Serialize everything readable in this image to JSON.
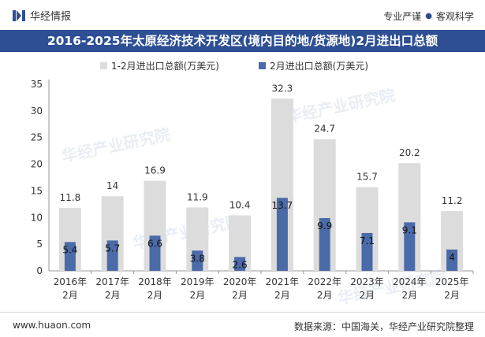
{
  "header": {
    "brand": "华经情报",
    "tagline_left": "专业严谨",
    "tagline_right": "客观科学"
  },
  "title": "2016-2025年太原经济技术开发区(境内目的地/货源地)2月进出口总额",
  "footer": {
    "website": "www.huaon.com",
    "source": "数据来源：中国海关，华经产业研究院整理"
  },
  "watermark": "华经产业研究院",
  "colors": {
    "series1": "#dcdcdc",
    "series2": "#4a6aa8",
    "title_bg": "#2e4f94"
  },
  "chart_data": {
    "type": "bar",
    "categories": [
      "2016年2月",
      "2017年2月",
      "2018年2月",
      "2019年2月",
      "2020年2月",
      "2021年2月",
      "2022年2月",
      "2023年2月",
      "2024年2月",
      "2025年2月"
    ],
    "series": [
      {
        "name": "1-2月进出口总额(万美元)",
        "values": [
          11.8,
          14,
          16.9,
          11.9,
          10.4,
          32.3,
          24.7,
          15.7,
          20.2,
          11.2
        ]
      },
      {
        "name": "2月进出口总额(万美元)",
        "values": [
          5.4,
          5.7,
          6.6,
          3.8,
          2.6,
          13.7,
          9.9,
          7.1,
          9.1,
          4
        ]
      }
    ],
    "ylim": [
      0,
      35
    ],
    "yticks": [
      0,
      5,
      10,
      15,
      20,
      25,
      30,
      35
    ],
    "legend": "top-center",
    "grid": false
  }
}
